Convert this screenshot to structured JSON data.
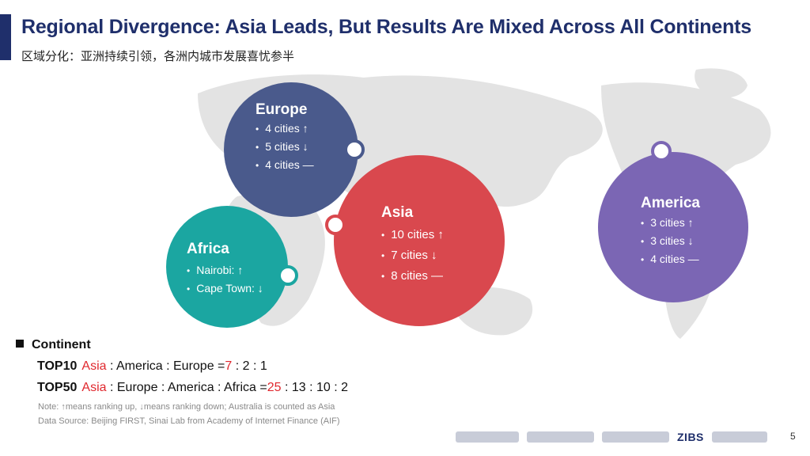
{
  "header": {
    "title": "Regional Divergence: Asia Leads, But Results Are Mixed Across All Continents",
    "subtitle": "区域分化：亚洲持续引领，各洲内城市发展喜忧参半"
  },
  "bubbles": {
    "europe": {
      "name": "Europe",
      "items": [
        "4 cities ↑",
        "5 cities ↓",
        "4 cities —"
      ],
      "color": "#4a5a8c"
    },
    "asia": {
      "name": "Asia",
      "items": [
        "10 cities ↑",
        "7 cities ↓",
        "8 cities —"
      ],
      "color": "#d9484e"
    },
    "africa": {
      "name": "Africa",
      "items": [
        "Nairobi: ↑",
        "Cape Town: ↓"
      ],
      "color": "#1ba6a1"
    },
    "america": {
      "name": "America",
      "items": [
        "3 cities ↑",
        "3 cities ↓",
        "4 cities —"
      ],
      "color": "#7b66b4"
    }
  },
  "continent": {
    "heading": "Continent",
    "top10": {
      "label": "TOP10",
      "lead": "Asia",
      "rest": " : America : Europe =",
      "lead_value": "7",
      "rest_values": " : 2 : 1"
    },
    "top50": {
      "label": "TOP50",
      "lead": "Asia",
      "rest": " : Europe : America : Africa =",
      "lead_value": "25",
      "rest_values": " : 13 : 10 : 2"
    }
  },
  "notes": {
    "note1": "Note: ↑means ranking up, ↓means ranking down; Australia is counted as Asia",
    "note2": "Data Source: Beijing FIRST, Sinai Lab from Academy of Internet Finance (AIF)"
  },
  "footer": {
    "zibs": "ZIBS",
    "page_number": "5"
  }
}
